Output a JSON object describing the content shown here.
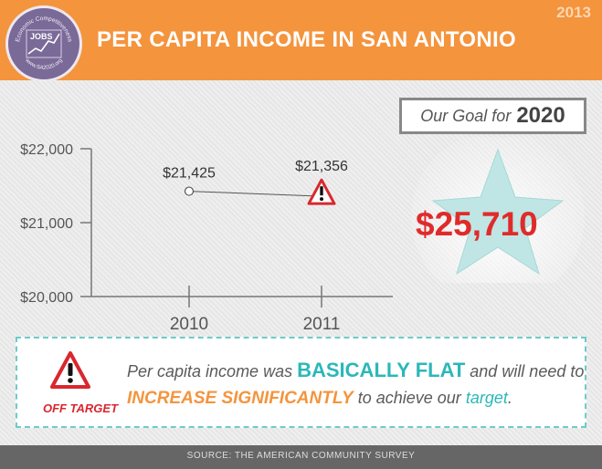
{
  "header": {
    "title": "PER CAPITA INCOME IN SAN ANTONIO",
    "year": "2013",
    "badge": {
      "top_text": "Economic Competitiveness",
      "word": "JOBS",
      "bottom_text": "www.SA2020.org"
    }
  },
  "chart_data": {
    "type": "line",
    "x": [
      "2010",
      "2011"
    ],
    "series": [
      {
        "values": [
          21425,
          21356
        ]
      }
    ],
    "value_labels": [
      "$21,425",
      "$21,356"
    ],
    "ylim": [
      20000,
      22000
    ],
    "yticks": [
      {
        "value": 20000,
        "label": "$20,000"
      },
      {
        "value": 21000,
        "label": "$21,000"
      },
      {
        "value": 22000,
        "label": "$22,000"
      }
    ],
    "grid": false,
    "title": "",
    "xlabel": "",
    "ylabel": ""
  },
  "goal": {
    "label": "Our Goal for",
    "year": "2020",
    "value": "$25,710"
  },
  "note": {
    "status": "OFF TARGET",
    "line1_a": "Per capita income was",
    "line1_highlight": "BASICALLY FLAT",
    "line1_b": "and will need to",
    "line2_highlight": "INCREASE SIGNIFICANTLY",
    "line2_a": "to achieve our",
    "line2_target": "target",
    "line2_end": "."
  },
  "footer": {
    "source": "SOURCE: THE AMERICAN COMMUNITY SURVEY"
  },
  "colors": {
    "header": "#f4943d",
    "accent_teal": "#2cb7b9",
    "alert_red": "#e02b2b",
    "footer": "#666666"
  },
  "icons": [
    "warning-icon",
    "star-icon",
    "line-graph-icon"
  ]
}
